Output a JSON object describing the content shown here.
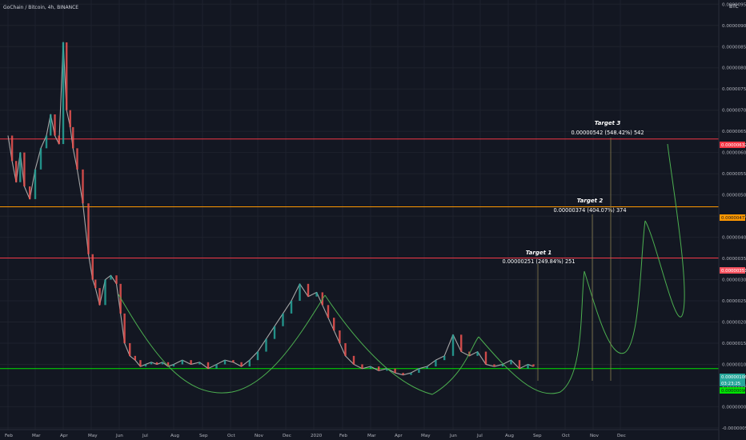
{
  "header": {
    "symbol_line": "GoChain / Bitcoin, 4h, BINANCE",
    "currency": "BTC"
  },
  "chart_data": {
    "type": "line",
    "symbol": "GoChain / Bitcoin",
    "interval": "4h",
    "exchange": "BINANCE",
    "currency": "BTC",
    "x_tick_labels": [
      "Feb",
      "Mar",
      "Apr",
      "May",
      "Jun",
      "Jul",
      "Aug",
      "Sep",
      "Oct",
      "Nov",
      "Dec",
      "2020",
      "Feb",
      "Mar",
      "Apr",
      "May",
      "Jun",
      "Jul",
      "Aug",
      "Sep",
      "Oct",
      "Nov",
      "Dec"
    ],
    "y_tick_labels": [
      "0.00000950",
      "0.00000900",
      "0.00000850",
      "0.00000800",
      "0.00000750",
      "0.00000700",
      "0.00000650",
      "0.00000600",
      "0.00000550",
      "0.00000500",
      "0.00000450",
      "0.00000400",
      "0.00000350",
      "0.00000300",
      "0.00000250",
      "0.00000200",
      "0.00000150",
      "0.00000100",
      "0.00000050",
      "0.00000000",
      "-0.00000050"
    ],
    "y_tick_values": [
      9.5e-06,
      9e-06,
      8.5e-06,
      8e-06,
      7.5e-06,
      7e-06,
      6.5e-06,
      6e-06,
      5.5e-06,
      5e-06,
      4.5e-06,
      4e-06,
      3.5e-06,
      3e-06,
      2.5e-06,
      2e-06,
      1.5e-06,
      1e-06,
      5e-07,
      0.0,
      -5e-07
    ],
    "ylim": [
      -5.4e-07,
      9.6e-06
    ],
    "grid": true,
    "price_series": {
      "x_month_index": [
        0,
        0.15,
        0.3,
        0.45,
        0.6,
        0.8,
        1.0,
        1.2,
        1.4,
        1.55,
        1.7,
        1.85,
        2.0,
        2.12,
        2.25,
        2.35,
        2.5,
        2.7,
        2.9,
        3.05,
        3.15,
        3.3,
        3.5,
        3.7,
        3.9,
        4.05,
        4.2,
        4.4,
        4.6,
        4.8,
        5.0,
        5.2,
        5.4,
        5.6,
        5.8,
        6.0,
        6.3,
        6.6,
        6.9,
        7.2,
        7.5,
        7.8,
        8.1,
        8.4,
        8.7,
        9.0,
        9.3,
        9.6,
        9.9,
        10.2,
        10.5,
        10.8,
        11.1,
        11.3,
        11.5,
        11.7,
        11.9,
        12.1,
        12.4,
        12.7,
        13.0,
        13.3,
        13.6,
        13.9,
        14.2,
        14.5,
        14.8,
        15.1,
        15.4,
        15.7,
        16.0,
        16.3,
        16.6,
        16.9,
        17.2,
        17.5,
        17.8,
        18.1,
        18.4,
        18.7,
        18.9
      ],
      "price_satoshi": [
        640,
        580,
        530,
        600,
        520,
        490,
        560,
        610,
        640,
        690,
        640,
        620,
        860,
        700,
        660,
        610,
        560,
        480,
        360,
        300,
        280,
        240,
        300,
        310,
        290,
        220,
        150,
        120,
        110,
        95,
        100,
        105,
        100,
        105,
        95,
        100,
        110,
        100,
        105,
        90,
        100,
        110,
        105,
        95,
        110,
        130,
        160,
        190,
        220,
        250,
        290,
        260,
        270,
        240,
        210,
        180,
        150,
        120,
        100,
        90,
        95,
        85,
        90,
        80,
        75,
        80,
        90,
        95,
        110,
        120,
        170,
        130,
        120,
        130,
        100,
        95,
        100,
        110,
        90,
        100,
        95
      ]
    },
    "horizontal_levels": [
      {
        "price_label": "0.00000632",
        "color": "#f23645"
      },
      {
        "price_label": "0.00000472",
        "color": "#ff9800"
      },
      {
        "price_label": "0.00000351",
        "color": "#f23645"
      },
      {
        "price_label": "0.00000090",
        "color": "#00e400"
      }
    ],
    "price_badges": [
      {
        "label": "0.00000632",
        "bg": "#f23645",
        "fg": "#ffffff"
      },
      {
        "label": "0.00000472",
        "bg": "#ff9800",
        "fg": "#131722"
      },
      {
        "label": "0.00000351",
        "bg": "#f7525f",
        "fg": "#ffffff"
      },
      {
        "label": "0.00000106",
        "bg": "#26a69a",
        "fg": "#ffffff"
      },
      {
        "label": "03:23:25",
        "bg": "#26a69a",
        "fg": "#ffffff"
      },
      {
        "label": "0.00000090",
        "bg": "#00e400",
        "fg": "#131722"
      }
    ],
    "targets": [
      {
        "title": "Target 1",
        "value_text": "0.00000251 (249.84%) 251"
      },
      {
        "title": "Target 2",
        "value_text": "0.00000374 (404.07%) 374"
      },
      {
        "title": "Target 3",
        "value_text": "0.00000542 (548.42%) 542"
      }
    ]
  }
}
